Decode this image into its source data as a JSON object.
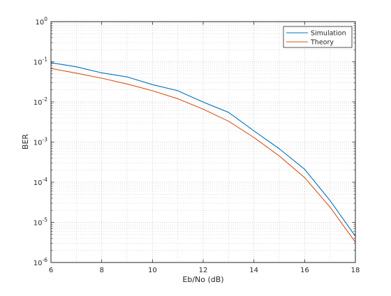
{
  "chart_data": {
    "type": "line",
    "title": "",
    "xlabel": "Eb/No (dB)",
    "ylabel": "BER",
    "xlim": [
      6,
      18
    ],
    "ylim": [
      1e-06,
      1
    ],
    "yscale": "log",
    "grid": true,
    "minor_grid": true,
    "legend_position": "top-right",
    "x_ticks": [
      "6",
      "8",
      "10",
      "12",
      "14",
      "16",
      "18"
    ],
    "y_ticks": [
      {
        "base": "10",
        "exp": "0"
      },
      {
        "base": "10",
        "exp": "-1"
      },
      {
        "base": "10",
        "exp": "-2"
      },
      {
        "base": "10",
        "exp": "-3"
      },
      {
        "base": "10",
        "exp": "-4"
      },
      {
        "base": "10",
        "exp": "-5"
      },
      {
        "base": "10",
        "exp": "-6"
      }
    ],
    "x": [
      6,
      7,
      8,
      9,
      10,
      11,
      12,
      13,
      14,
      15,
      16,
      17,
      18
    ],
    "series": [
      {
        "name": "Simulation",
        "color": "#0072BD",
        "values": [
          0.095,
          0.075,
          0.053,
          0.042,
          0.027,
          0.019,
          0.0099,
          0.0055,
          0.0019,
          0.00068,
          0.00021,
          3.5e-05,
          4.5e-06
        ]
      },
      {
        "name": "Theory",
        "color": "#D95319",
        "values": [
          0.068,
          0.052,
          0.039,
          0.028,
          0.019,
          0.012,
          0.0066,
          0.0033,
          0.0013,
          0.00045,
          0.00013,
          2.4e-05,
          3.2e-06
        ]
      }
    ]
  }
}
